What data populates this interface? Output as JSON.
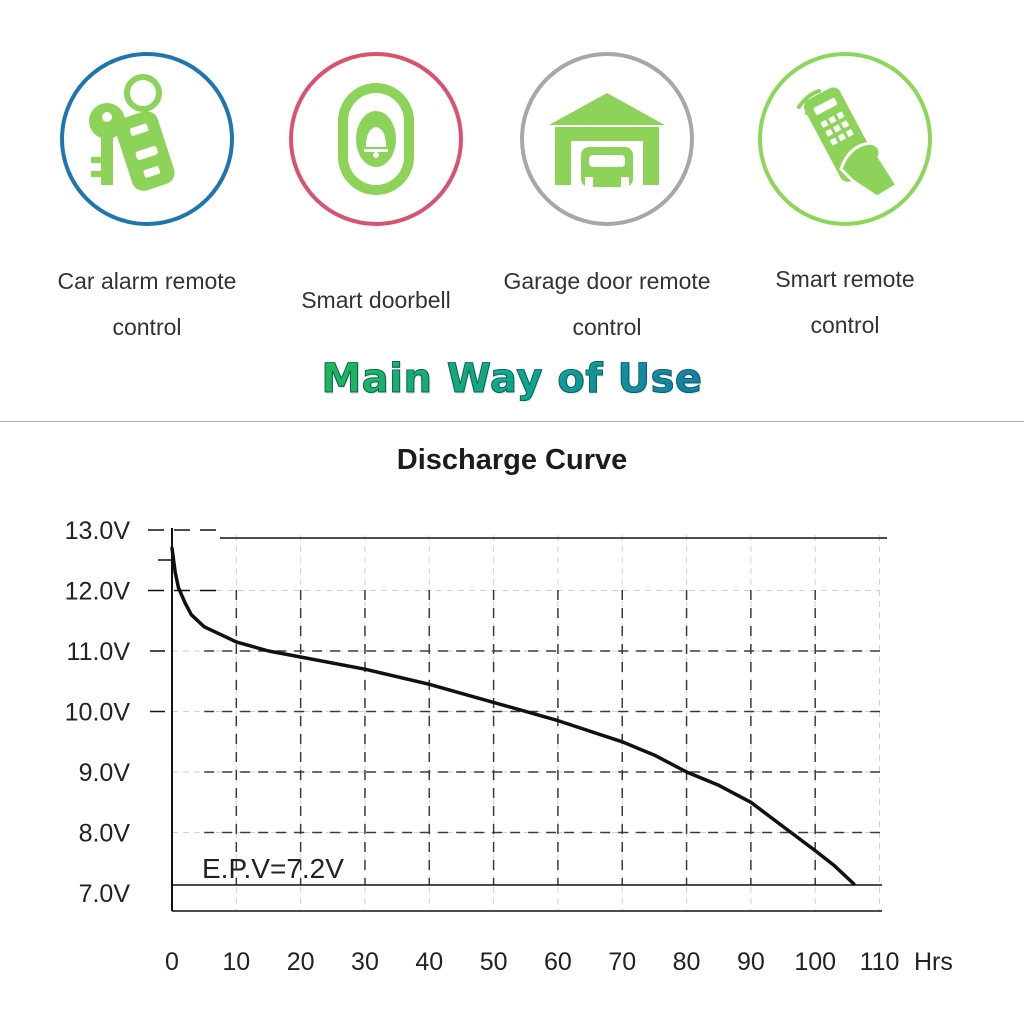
{
  "uses_section": {
    "items": [
      {
        "label_line1": "Car alarm remote",
        "label_line2": "control",
        "icon": "car-key-fob-icon",
        "ring_color": "#1f76ae"
      },
      {
        "label_line1": "Smart doorbell",
        "label_line2": "",
        "icon": "doorbell-icon",
        "ring_color": "#d9536e"
      },
      {
        "label_line1": "Garage door remote",
        "label_line2": "control",
        "icon": "garage-icon",
        "ring_color": "#a7a7a7"
      },
      {
        "label_line1": "Smart remote",
        "label_line2": "control",
        "icon": "hand-remote-icon",
        "ring_color": "#8cd65a"
      }
    ],
    "icon_color": "#8dd35a",
    "heading": "Main Way of Use"
  },
  "chart_data": {
    "type": "line",
    "title": "Discharge Curve",
    "x_unit": "Hrs",
    "xlim": [
      0,
      110
    ],
    "ylim": [
      7.0,
      13.0
    ],
    "x_ticks": [
      0,
      10,
      20,
      30,
      40,
      50,
      60,
      70,
      80,
      90,
      100,
      110
    ],
    "x_tick_labels": [
      "0",
      "10",
      "20",
      "30",
      "40",
      "50",
      "60",
      "70",
      "80",
      "90",
      "100",
      "110"
    ],
    "y_ticks": [
      7,
      8,
      9,
      10,
      11,
      12,
      13
    ],
    "y_tick_labels": [
      "7.0V",
      "8.0V",
      "9.0V",
      "10.0V",
      "11.0V",
      "12.0V",
      "13.0V"
    ],
    "grid": true,
    "annotation": "E.P.V=7.2V",
    "end_voltage": 7.2,
    "series": [
      {
        "x": [
          0,
          0.5,
          1,
          2,
          3,
          5,
          7,
          10,
          15,
          20,
          30,
          40,
          50,
          60,
          70,
          75,
          80,
          85,
          90,
          95,
          100,
          103,
          106
        ],
        "y": [
          12.7,
          12.3,
          12.05,
          11.8,
          11.6,
          11.4,
          11.3,
          11.15,
          11.0,
          10.9,
          10.7,
          10.45,
          10.15,
          9.85,
          9.5,
          9.28,
          9.0,
          8.78,
          8.5,
          8.1,
          7.7,
          7.45,
          7.15
        ]
      }
    ]
  }
}
